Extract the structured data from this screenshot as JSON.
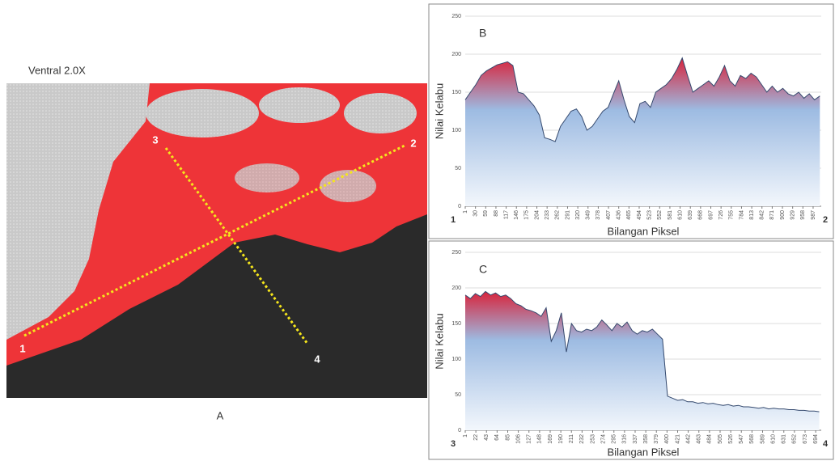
{
  "image_panel": {
    "title": "Ventral 2.0X",
    "caption": "A",
    "points": [
      "1",
      "2",
      "3",
      "4"
    ]
  },
  "chart_data": [
    {
      "type": "area",
      "annotation": "B",
      "start_label": "1",
      "end_label": "2",
      "y_label": "Nilai Kelabu",
      "x_label": "Bilangan Piksel",
      "xlim": [
        1,
        1010
      ],
      "ylim": [
        0,
        250
      ],
      "yticks": [
        0,
        50,
        100,
        150,
        200,
        250
      ],
      "grid": true,
      "xticks": [
        1,
        30,
        59,
        88,
        117,
        146,
        175,
        204,
        233,
        262,
        291,
        320,
        349,
        378,
        407,
        436,
        465,
        494,
        523,
        552,
        581,
        610,
        639,
        668,
        697,
        726,
        755,
        784,
        813,
        842,
        871,
        900,
        929,
        958,
        987
      ],
      "fill_colors": [
        "#d8243c",
        "#9dbbe2",
        "#f3f7fc"
      ],
      "x": [
        1,
        16,
        31,
        46,
        61,
        76,
        91,
        106,
        121,
        136,
        151,
        166,
        181,
        196,
        211,
        226,
        241,
        256,
        271,
        286,
        301,
        316,
        331,
        346,
        361,
        376,
        391,
        406,
        421,
        436,
        451,
        466,
        481,
        496,
        511,
        526,
        541,
        556,
        571,
        586,
        601,
        616,
        631,
        646,
        661,
        676,
        691,
        706,
        721,
        736,
        751,
        766,
        781,
        796,
        811,
        826,
        841,
        856,
        871,
        886,
        901,
        916,
        931,
        946,
        961,
        976,
        991,
        1006
      ],
      "series": [
        {
          "color": "#34496e",
          "values": [
            140,
            150,
            160,
            172,
            178,
            182,
            186,
            188,
            190,
            185,
            150,
            148,
            140,
            132,
            120,
            90,
            88,
            85,
            105,
            115,
            125,
            128,
            118,
            100,
            105,
            115,
            125,
            130,
            148,
            165,
            140,
            118,
            110,
            135,
            138,
            130,
            150,
            155,
            160,
            168,
            180,
            195,
            172,
            150,
            155,
            160,
            165,
            158,
            170,
            185,
            165,
            158,
            172,
            168,
            175,
            170,
            160,
            150,
            158,
            150,
            155,
            148,
            145,
            150,
            142,
            148,
            140,
            145
          ]
        }
      ]
    },
    {
      "type": "area",
      "annotation": "C",
      "start_label": "3",
      "end_label": "4",
      "y_label": "Nilai Kelabu",
      "x_label": "Bilangan Piksel",
      "xlim": [
        1,
        705
      ],
      "ylim": [
        0,
        250
      ],
      "yticks": [
        0,
        50,
        100,
        150,
        200,
        250
      ],
      "grid": true,
      "xticks": [
        1,
        22,
        43,
        64,
        85,
        106,
        127,
        148,
        169,
        190,
        211,
        232,
        253,
        274,
        295,
        316,
        337,
        358,
        379,
        400,
        421,
        442,
        463,
        484,
        505,
        526,
        547,
        568,
        589,
        610,
        631,
        652,
        673,
        694
      ],
      "fill_colors": [
        "#d8243c",
        "#9dbbe2",
        "#f3f7fc"
      ],
      "x": [
        1,
        11,
        21,
        31,
        41,
        51,
        61,
        71,
        81,
        91,
        101,
        111,
        121,
        131,
        141,
        151,
        161,
        171,
        181,
        191,
        201,
        211,
        221,
        231,
        241,
        251,
        261,
        271,
        281,
        291,
        301,
        311,
        321,
        331,
        341,
        351,
        361,
        371,
        381,
        391,
        401,
        411,
        421,
        431,
        441,
        451,
        461,
        471,
        481,
        491,
        501,
        511,
        521,
        531,
        541,
        551,
        561,
        571,
        581,
        591,
        601,
        611,
        621,
        631,
        641,
        651,
        661,
        671,
        681,
        691,
        701
      ],
      "series": [
        {
          "color": "#34496e",
          "values": [
            190,
            185,
            192,
            188,
            195,
            190,
            193,
            188,
            190,
            185,
            178,
            175,
            170,
            168,
            165,
            160,
            172,
            125,
            140,
            165,
            110,
            150,
            140,
            138,
            142,
            140,
            145,
            155,
            148,
            140,
            150,
            145,
            152,
            140,
            135,
            140,
            138,
            142,
            135,
            128,
            48,
            45,
            42,
            43,
            40,
            40,
            38,
            39,
            37,
            38,
            36,
            35,
            36,
            34,
            35,
            33,
            33,
            32,
            31,
            32,
            30,
            31,
            30,
            30,
            29,
            29,
            28,
            28,
            27,
            27,
            26
          ]
        }
      ]
    }
  ]
}
